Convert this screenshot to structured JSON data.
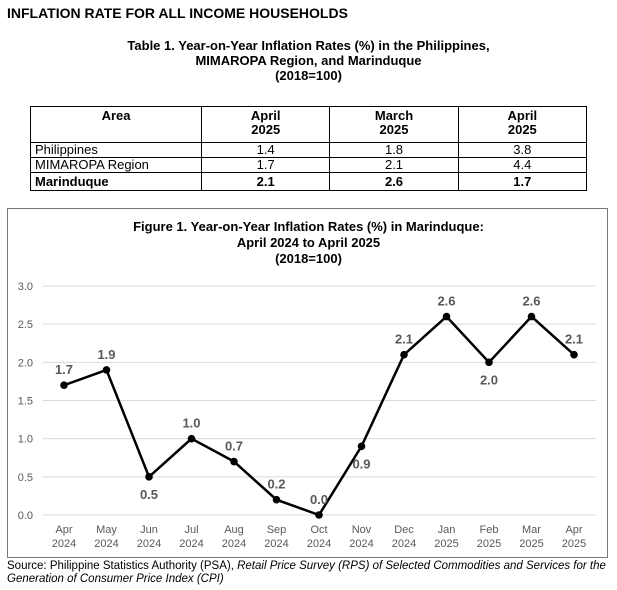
{
  "heading": "INFLATION RATE FOR ALL INCOME HOUSEHOLDS",
  "table": {
    "title_lines": [
      "Table 1. Year-on-Year Inflation Rates (%) in the Philippines,",
      "MIMAROPA Region, and Marinduque",
      "(2018=100)"
    ],
    "headers": [
      {
        "line1": "Area",
        "line2": ""
      },
      {
        "line1": "April",
        "line2": "2025"
      },
      {
        "line1": "March",
        "line2": "2025"
      },
      {
        "line1": "April",
        "line2": "2025"
      }
    ],
    "rows": [
      {
        "area": "Philippines",
        "values": [
          "1.4",
          "1.8",
          "3.8"
        ]
      },
      {
        "area": "MIMAROPA Region",
        "values": [
          "1.7",
          "2.1",
          "4.4"
        ]
      },
      {
        "area": "Marinduque",
        "values": [
          "2.1",
          "2.6",
          "1.7"
        ]
      }
    ]
  },
  "chart_data": {
    "type": "line",
    "title_lines": [
      "Figure 1. Year-on-Year Inflation Rates (%) in Marinduque:",
      "April 2024 to April 2025",
      "(2018=100)"
    ],
    "x": [
      {
        "month": "Apr",
        "year": "2024"
      },
      {
        "month": "May",
        "year": "2024"
      },
      {
        "month": "Jun",
        "year": "2024"
      },
      {
        "month": "Jul",
        "year": "2024"
      },
      {
        "month": "Aug",
        "year": "2024"
      },
      {
        "month": "Sep",
        "year": "2024"
      },
      {
        "month": "Oct",
        "year": "2024"
      },
      {
        "month": "Nov",
        "year": "2024"
      },
      {
        "month": "Dec",
        "year": "2024"
      },
      {
        "month": "Jan",
        "year": "2025"
      },
      {
        "month": "Feb",
        "year": "2025"
      },
      {
        "month": "Mar",
        "year": "2025"
      },
      {
        "month": "Apr",
        "year": "2025"
      }
    ],
    "values": [
      1.7,
      1.9,
      0.5,
      1.0,
      0.7,
      0.2,
      0.0,
      0.9,
      2.1,
      2.6,
      2.0,
      2.6,
      2.1
    ],
    "value_labels": [
      "1.7",
      "1.9",
      "0.5",
      "1.0",
      "0.7",
      "0.2",
      "0.0",
      "0.9",
      "2.1",
      "2.6",
      "2.0",
      "2.6",
      "2.1"
    ],
    "label_position": [
      "above",
      "above",
      "below",
      "above",
      "above",
      "above",
      "above",
      "below",
      "above",
      "above",
      "below",
      "above",
      "above"
    ],
    "y_ticks": [
      "0.0",
      "0.5",
      "1.0",
      "1.5",
      "2.0",
      "2.5",
      "3.0"
    ],
    "ylim": [
      0,
      3.0
    ],
    "grid": true,
    "colors": {
      "line": "#000000",
      "grid": "#d9d9d9",
      "tick_text": "#595959",
      "value_label": "#595959"
    }
  },
  "source": {
    "prefix": "Source: Philippine Statistics Authority (PSA), ",
    "italic": "Retail Price Survey (RPS) of Selected Commodities and Services for the Generation of Consumer Price Index (CPI)"
  }
}
